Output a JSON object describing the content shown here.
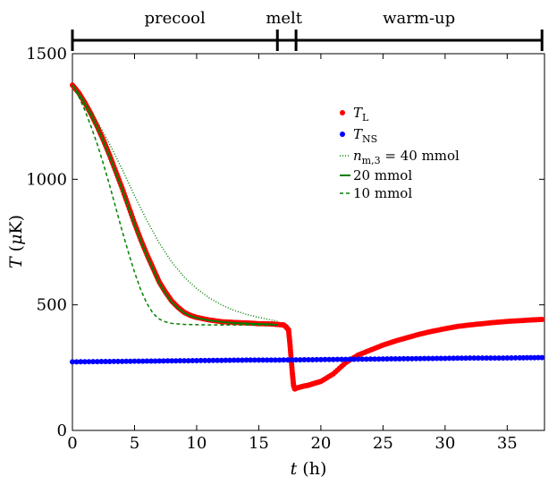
{
  "chart_data": {
    "type": "line",
    "xlabel": "t (h)",
    "ylabel": "T (μK)",
    "xlim": [
      0,
      38
    ],
    "ylim": [
      0,
      1500
    ],
    "x_ticks": [
      0,
      5,
      10,
      15,
      20,
      25,
      30,
      35
    ],
    "y_ticks": [
      0,
      500,
      1000,
      1500
    ],
    "grid": false,
    "legend_position": "top-right",
    "phases": [
      {
        "label": "precool",
        "start": 0,
        "end": 16.5
      },
      {
        "label": "melt",
        "start": 16.5,
        "end": 18
      },
      {
        "label": "warm-up",
        "start": 18,
        "end": 37.8
      }
    ],
    "series": [
      {
        "name": "T_L",
        "style": "dots",
        "color": "#ff0000",
        "x": [
          0,
          0.5,
          1,
          1.5,
          2,
          2.5,
          3,
          3.5,
          4,
          4.5,
          5,
          5.5,
          6,
          6.5,
          7,
          7.5,
          8,
          8.5,
          9,
          9.5,
          10,
          11,
          12,
          13,
          14,
          15,
          16,
          16.5,
          17,
          17.2,
          17.4,
          17.5,
          17.6,
          17.7,
          17.8,
          17.9,
          18,
          18.5,
          19,
          19.5,
          20,
          21,
          22,
          23,
          24,
          25,
          26,
          27,
          28,
          29,
          30,
          31,
          32,
          33,
          34,
          35,
          36,
          37,
          37.8
        ],
        "y": [
          1375,
          1345,
          1305,
          1260,
          1210,
          1155,
          1095,
          1030,
          965,
          895,
          825,
          760,
          700,
          645,
          590,
          550,
          515,
          490,
          470,
          458,
          450,
          440,
          433,
          430,
          428,
          425,
          424,
          422,
          420,
          412,
          400,
          350,
          290,
          230,
          180,
          165,
          168,
          175,
          180,
          188,
          195,
          225,
          270,
          300,
          320,
          340,
          356,
          370,
          384,
          395,
          405,
          414,
          420,
          425,
          430,
          434,
          437,
          440,
          442
        ]
      },
      {
        "name": "T_NS",
        "style": "dots",
        "color": "#0000ff",
        "x": [
          0,
          2,
          4,
          6,
          8,
          10,
          12,
          14,
          16,
          18,
          20,
          22,
          24,
          26,
          28,
          30,
          32,
          34,
          36,
          37.8
        ],
        "y": [
          273,
          274,
          275,
          276,
          277,
          278,
          279,
          280,
          280,
          281,
          282,
          283,
          284,
          285,
          286,
          287,
          288,
          288,
          289,
          290
        ]
      },
      {
        "name": "n_m,3 = 40 mmol",
        "style": "dotted",
        "color": "#008000",
        "x": [
          0,
          1,
          2,
          3,
          4,
          5,
          6,
          7,
          8,
          9,
          10,
          11,
          12,
          13,
          14,
          15,
          16,
          16.5
        ],
        "y": [
          1375,
          1310,
          1230,
          1140,
          1040,
          935,
          835,
          745,
          670,
          610,
          565,
          528,
          500,
          478,
          462,
          450,
          440,
          435
        ]
      },
      {
        "name": "20 mmol",
        "style": "solid",
        "color": "#008000",
        "x": [
          0,
          0.5,
          1,
          1.5,
          2,
          2.5,
          3,
          3.5,
          4,
          4.5,
          5,
          5.5,
          6,
          6.5,
          7,
          7.5,
          8,
          8.5,
          9,
          9.5,
          10,
          11,
          12,
          13,
          14,
          15,
          16,
          16.5
        ],
        "y": [
          1375,
          1340,
          1300,
          1255,
          1205,
          1150,
          1090,
          1025,
          960,
          890,
          820,
          755,
          695,
          640,
          585,
          545,
          510,
          487,
          468,
          456,
          448,
          438,
          432,
          428,
          426,
          424,
          422,
          420
        ]
      },
      {
        "name": "10 mmol",
        "style": "dashed",
        "color": "#008000",
        "x": [
          0,
          0.5,
          1,
          1.5,
          2,
          2.5,
          3,
          3.5,
          4,
          4.5,
          5,
          5.5,
          6,
          6.5,
          7,
          7.5,
          8,
          8.5,
          9,
          10,
          11,
          12,
          13,
          14,
          15,
          16,
          16.5
        ],
        "y": [
          1375,
          1330,
          1275,
          1210,
          1140,
          1060,
          975,
          885,
          795,
          710,
          630,
          560,
          505,
          465,
          443,
          432,
          426,
          424,
          422,
          421,
          420,
          420,
          420,
          420,
          420,
          420,
          420
        ]
      }
    ]
  }
}
